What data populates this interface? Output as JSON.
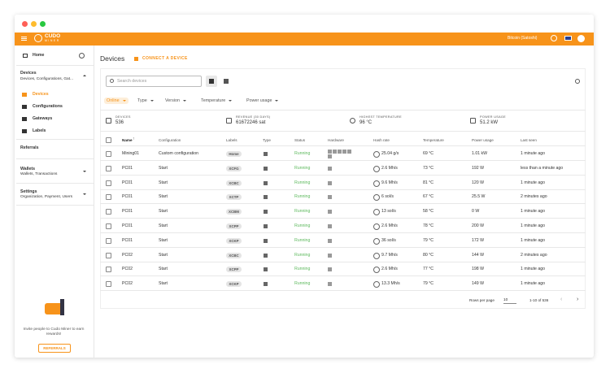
{
  "header": {
    "logo": "CUDO",
    "logo_sub": "MINER",
    "currency": "Bitcoin (Satoshi)"
  },
  "sidebar": {
    "home": "Home",
    "devices_title": "Devices",
    "devices_sub": "Devices, Configurations, Gat...",
    "items": [
      "Devices",
      "Configurations",
      "Gateways",
      "Labels"
    ],
    "referrals": "Referrals",
    "wallets_title": "Wallets",
    "wallets_sub": "Wallets, Transactions",
    "settings_title": "Settings",
    "settings_sub": "Organization, Payment, Users",
    "invite": "Invite people to Cudo Miner to earn rewards!",
    "referrals_button": "REFERRALS"
  },
  "main": {
    "title": "Devices",
    "connect": "CONNECT A DEVICE",
    "search_placeholder": "Search devices",
    "filters": [
      "Online",
      "Type",
      "Version",
      "Temperature",
      "Power usage"
    ]
  },
  "stats": [
    {
      "label": "DEVICES",
      "value": "536"
    },
    {
      "label": "REVENUE (30 DAYS)",
      "value": "61672246 sat"
    },
    {
      "label": "HIGHEST TEMPERATURE",
      "value": "96 °C"
    },
    {
      "label": "POWER USAGE",
      "value": "51.2 kW"
    }
  ],
  "table": {
    "columns": [
      "Name",
      "Configuration",
      "Labels",
      "Type",
      "Status",
      "Hardware",
      "Hash rate",
      "Temperature",
      "Power usage",
      "Last seen"
    ],
    "rows": [
      {
        "name": "Mining01",
        "configuration": "Custom configuration",
        "label": "Home",
        "status": "Running",
        "hash_rate": "25.04 g/s",
        "temperature": "69 °C",
        "power": "1.01 kW",
        "last_seen": "1 minute ago"
      },
      {
        "name": "PC01",
        "configuration": "Start",
        "label": "XCFG",
        "status": "Running",
        "hash_rate": "2.6 Mh/s",
        "temperature": "73 °C",
        "power": "192 W",
        "last_seen": "less than a minute ago"
      },
      {
        "name": "PC01",
        "configuration": "Start",
        "label": "XCBC",
        "status": "Running",
        "hash_rate": "9.6 Mh/s",
        "temperature": "81 °C",
        "power": "120 W",
        "last_seen": "1 minute ago"
      },
      {
        "name": "PC01",
        "configuration": "Start",
        "label": "XCTP",
        "status": "Running",
        "hash_rate": "6 sol/s",
        "temperature": "67 °C",
        "power": "25.5 W",
        "last_seen": "2 minutes ago"
      },
      {
        "name": "PC01",
        "configuration": "Start",
        "label": "XCBM",
        "status": "Running",
        "hash_rate": "13 sol/s",
        "temperature": "58 °C",
        "power": "0 W",
        "last_seen": "1 minute ago"
      },
      {
        "name": "PC01",
        "configuration": "Start",
        "label": "XCPP",
        "status": "Running",
        "hash_rate": "2.6 Mh/s",
        "temperature": "78 °C",
        "power": "200 W",
        "last_seen": "1 minute ago"
      },
      {
        "name": "PC01",
        "configuration": "Start",
        "label": "XCKP",
        "status": "Running",
        "hash_rate": "36 sol/s",
        "temperature": "79 °C",
        "power": "172 W",
        "last_seen": "1 minute ago"
      },
      {
        "name": "PC02",
        "configuration": "Start",
        "label": "XCBC",
        "status": "Running",
        "hash_rate": "9.7 Mh/s",
        "temperature": "80 °C",
        "power": "144 W",
        "last_seen": "2 minutes ago"
      },
      {
        "name": "PC02",
        "configuration": "Start",
        "label": "XCPP",
        "status": "Running",
        "hash_rate": "2.6 Mh/s",
        "temperature": "77 °C",
        "power": "198 W",
        "last_seen": "1 minute ago"
      },
      {
        "name": "PC02",
        "configuration": "Start",
        "label": "XCKP",
        "status": "Running",
        "hash_rate": "13.3 Mh/s",
        "temperature": "79 °C",
        "power": "149 W",
        "last_seen": "1 minute ago"
      }
    ]
  },
  "pagination": {
    "rows_per_page_label": "Rows per page",
    "rows_per_page": "10",
    "range": "1-10 of 536"
  }
}
